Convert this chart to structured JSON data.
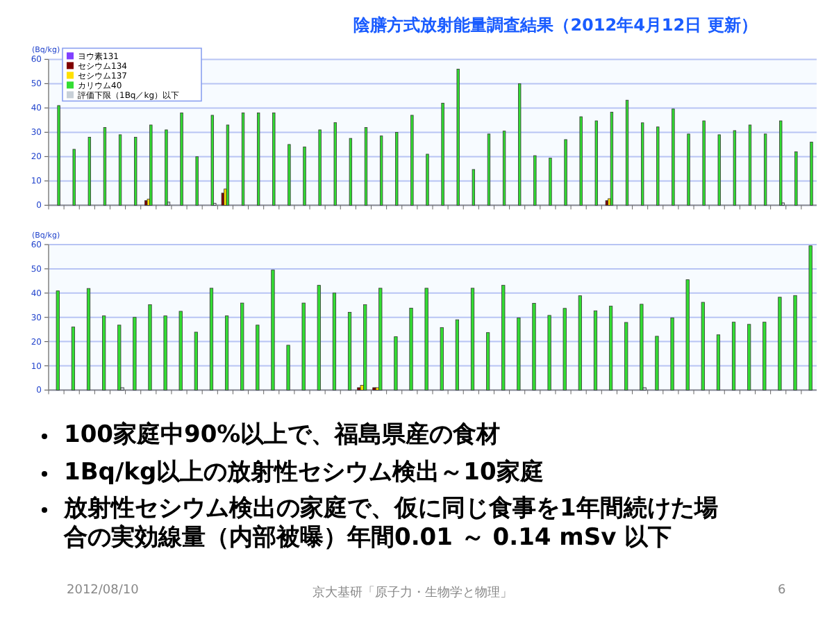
{
  "chart_data": [
    {
      "type": "bar",
      "title": "陰膳方式放射能量調査結果（2012年4月12日 更新）",
      "ylabel": "(Bq/kg)",
      "categories": [
        null,
        null,
        null,
        null,
        null,
        null,
        null,
        null,
        null,
        null,
        null,
        null,
        null,
        null,
        null,
        null,
        null,
        null,
        null,
        null,
        null,
        null,
        null,
        null,
        null,
        null,
        null,
        null,
        null,
        null,
        null,
        null,
        null,
        null,
        null,
        null,
        null,
        null,
        null,
        null,
        null,
        null,
        null,
        null,
        null,
        null,
        null,
        null,
        null,
        null
      ],
      "series": [
        {
          "name": "ヨウ素131",
          "color": "#8040ff",
          "values": [
            null,
            null,
            null,
            null,
            null,
            null,
            null,
            null,
            null,
            null,
            null,
            null,
            null,
            null,
            null,
            null,
            null,
            null,
            null,
            null,
            null,
            null,
            null,
            null,
            null,
            null,
            null,
            null,
            null,
            null,
            null,
            null,
            null,
            null,
            null,
            null,
            null,
            null,
            null,
            null,
            null,
            null,
            null,
            null,
            null,
            null,
            null,
            null,
            null,
            null
          ]
        },
        {
          "name": "セシウム134",
          "color": "#800000",
          "values": [
            null,
            null,
            null,
            null,
            null,
            null,
            1.9,
            null,
            null,
            null,
            null,
            5,
            null,
            null,
            null,
            null,
            null,
            null,
            null,
            null,
            null,
            null,
            null,
            null,
            null,
            null,
            null,
            null,
            null,
            null,
            null,
            null,
            null,
            null,
            null,
            null,
            1.9,
            null,
            null,
            null,
            null,
            null,
            null,
            null,
            null,
            null,
            null,
            null,
            null,
            null
          ]
        },
        {
          "name": "セシウム137",
          "color": "#ffe000",
          "values": [
            null,
            null,
            null,
            null,
            null,
            null,
            2.5,
            null,
            null,
            null,
            null,
            6.7,
            null,
            null,
            null,
            null,
            null,
            null,
            null,
            null,
            null,
            null,
            null,
            null,
            null,
            null,
            null,
            null,
            null,
            null,
            null,
            null,
            null,
            null,
            null,
            null,
            2.7,
            null,
            null,
            null,
            null,
            null,
            null,
            null,
            null,
            null,
            null,
            null,
            null,
            null
          ]
        },
        {
          "name": "カリウム40",
          "color": "#33dd33",
          "values": [
            41,
            23,
            28,
            32,
            29,
            28,
            33,
            31,
            38,
            20,
            37,
            33,
            38,
            38,
            38,
            25,
            24,
            31,
            34,
            27.5,
            32,
            28.5,
            30,
            37,
            21,
            42,
            56,
            14.7,
            29.3,
            30.5,
            50,
            20.4,
            19.4,
            27,
            36.4,
            34.7,
            38.3,
            43.2,
            33.9,
            32.2,
            39.6,
            29.3,
            34.7,
            29,
            30.7,
            33,
            29.3,
            34.7,
            22,
            26
          ]
        },
        {
          "name": "評価下限（1Bq／kg）以下",
          "color": "#c8d0d8",
          "values": [
            null,
            null,
            null,
            null,
            null,
            null,
            null,
            1.3,
            null,
            null,
            0.8,
            null,
            null,
            null,
            null,
            null,
            null,
            null,
            null,
            null,
            null,
            null,
            null,
            null,
            null,
            null,
            null,
            null,
            null,
            null,
            null,
            null,
            null,
            null,
            null,
            null,
            null,
            null,
            null,
            null,
            null,
            null,
            null,
            null,
            null,
            null,
            null,
            1,
            null,
            null
          ]
        }
      ],
      "ylim": [
        0,
        60
      ],
      "yticks": [
        0,
        10,
        20,
        30,
        40,
        50,
        60
      ],
      "grid": "y",
      "legend": "top left"
    },
    {
      "type": "bar",
      "ylabel": "(Bq/kg)",
      "categories": [
        null,
        null,
        null,
        null,
        null,
        null,
        null,
        null,
        null,
        null,
        null,
        null,
        null,
        null,
        null,
        null,
        null,
        null,
        null,
        null,
        null,
        null,
        null,
        null,
        null,
        null,
        null,
        null,
        null,
        null,
        null,
        null,
        null,
        null,
        null,
        null,
        null,
        null,
        null,
        null,
        null,
        null,
        null,
        null,
        null,
        null,
        null,
        null,
        null,
        null
      ],
      "series": [
        {
          "color": "#800000",
          "values": [
            null,
            null,
            null,
            null,
            null,
            null,
            null,
            null,
            null,
            null,
            null,
            null,
            null,
            null,
            null,
            null,
            null,
            null,
            null,
            null,
            1,
            1,
            null,
            null,
            null,
            null,
            null,
            null,
            null,
            null,
            null,
            null,
            null,
            null,
            null,
            null,
            null,
            null,
            null,
            null,
            null,
            null,
            null,
            null,
            null,
            null,
            null,
            null,
            null,
            null
          ]
        },
        {
          "color": "#ffe000",
          "values": [
            null,
            null,
            null,
            null,
            null,
            null,
            null,
            null,
            null,
            null,
            null,
            null,
            null,
            null,
            null,
            null,
            null,
            null,
            null,
            null,
            2,
            1,
            null,
            null,
            null,
            null,
            null,
            null,
            null,
            null,
            null,
            null,
            null,
            null,
            null,
            null,
            null,
            null,
            null,
            null,
            null,
            null,
            null,
            null,
            null,
            null,
            null,
            null,
            null,
            null
          ]
        },
        {
          "color": "#33dd33",
          "values": [
            40.9,
            26,
            41.9,
            30.6,
            26.8,
            30,
            35.2,
            30.6,
            32.5,
            23.9,
            42,
            30.6,
            35.9,
            26.8,
            49.5,
            18.5,
            35.9,
            43.2,
            40,
            32.1,
            35.2,
            42,
            22,
            33.8,
            42,
            25.8,
            29,
            42,
            23.7,
            43.2,
            29.8,
            35.8,
            30.8,
            33.7,
            38.9,
            32.7,
            34.6,
            27.9,
            35.4,
            22.2,
            29.8,
            45.5,
            36.2,
            22.8,
            28,
            27.1,
            28,
            38.3,
            39,
            59.5
          ]
        },
        {
          "color": "#c8d0d8",
          "values": [
            null,
            null,
            null,
            null,
            1,
            null,
            null,
            null,
            null,
            null,
            null,
            null,
            null,
            null,
            null,
            null,
            null,
            null,
            null,
            null,
            null,
            null,
            null,
            null,
            null,
            null,
            null,
            null,
            null,
            null,
            null,
            null,
            null,
            null,
            null,
            null,
            null,
            null,
            1,
            null,
            null,
            null,
            null,
            null,
            null,
            null,
            null,
            null,
            null,
            null
          ]
        }
      ],
      "ylim": [
        0,
        60
      ],
      "yticks": [
        0,
        10,
        20,
        30,
        40,
        50,
        60
      ],
      "grid": "y"
    },
    {
      "type": "other",
      "annotations": [
        "100家庭中90%以上で、福島県産の食材",
        "1Bq/kg以上の放射性セシウム検出～10家庭",
        "放射性セシウム検出の家庭で、仮に同じ食事を1年間続けた場合の実効線量（内部被曝）年間0.01 ～ 0.14 mSv 以下",
        "2012/08/10",
        "京大基研「原子力・生物学と物理」",
        "6"
      ]
    }
  ]
}
